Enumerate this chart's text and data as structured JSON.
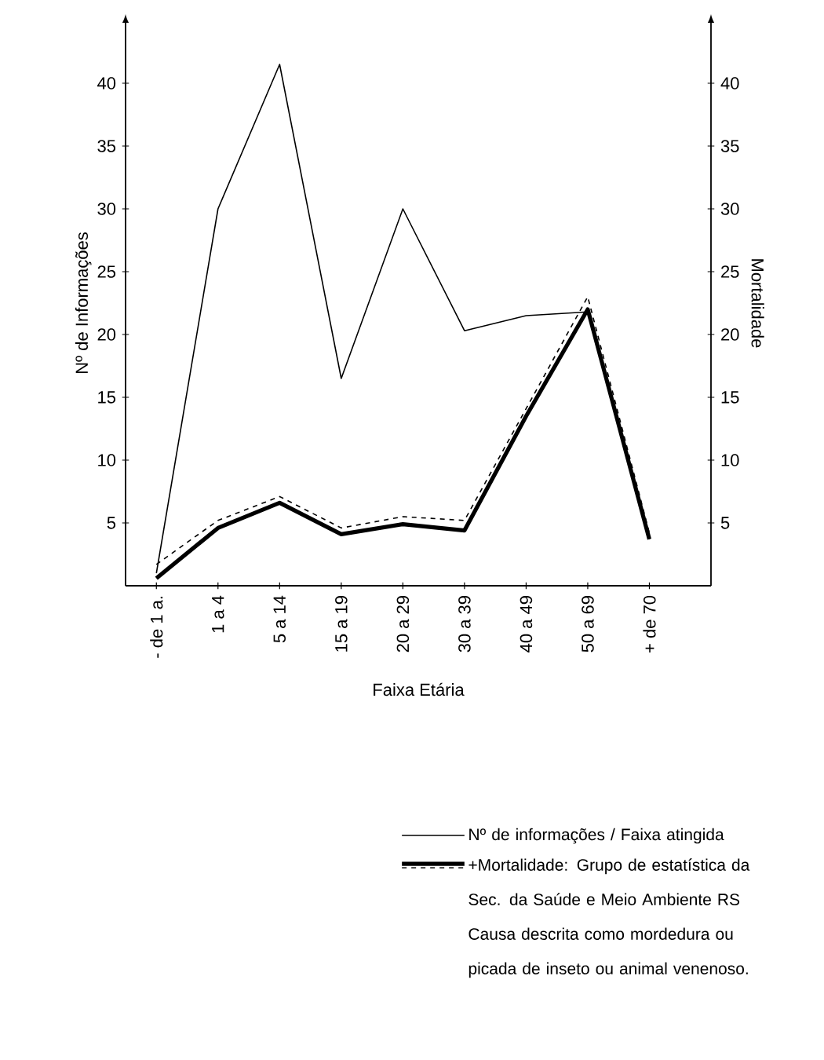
{
  "chart_data": {
    "type": "line",
    "xlabel": "Faixa Etária",
    "ylabel": "Nº de Informações",
    "y2label": "Mortalidade",
    "categories": [
      "- de 1 a.",
      "1 a 4",
      "5 a 14",
      "15 a 19",
      "20 a 29",
      "30 a 39",
      "40 a 49",
      "50 a 69",
      "+ de 70"
    ],
    "series": [
      {
        "name": "Nº de informações / Faixa atingida",
        "color": "#000000",
        "line_style": "solid",
        "values": [
          1,
          30,
          41.5,
          16.5,
          30,
          20.3,
          21.5,
          21.8,
          3.7
        ]
      },
      {
        "color": "#000000",
        "axis": "y2",
        "line_style": "solid",
        "values": [
          0.6,
          4.6,
          6.6,
          4.1,
          4.9,
          4.4,
          13.5,
          22,
          3.7
        ]
      },
      {
        "name": "+Mortalidade: Grupo de estatística da Sec. da Saúde e Meio Ambiente RS Causa descrita como mordedura ou picada de inseto ou animal venenoso.",
        "color": "#000000",
        "axis": "y2",
        "line_style": "dashed",
        "values": [
          1.7,
          5.2,
          7.1,
          4.6,
          5.5,
          5.2,
          14.1,
          23,
          4.2
        ]
      }
    ],
    "ylim": [
      0,
      45
    ],
    "yticks": [
      5,
      10,
      15,
      20,
      25,
      30,
      35,
      40
    ],
    "y2lim": [
      0,
      45
    ],
    "y2ticks": [
      5,
      10,
      15,
      20,
      25,
      30,
      35,
      40
    ],
    "grid": false,
    "marker": "none",
    "legend": "bottom"
  }
}
